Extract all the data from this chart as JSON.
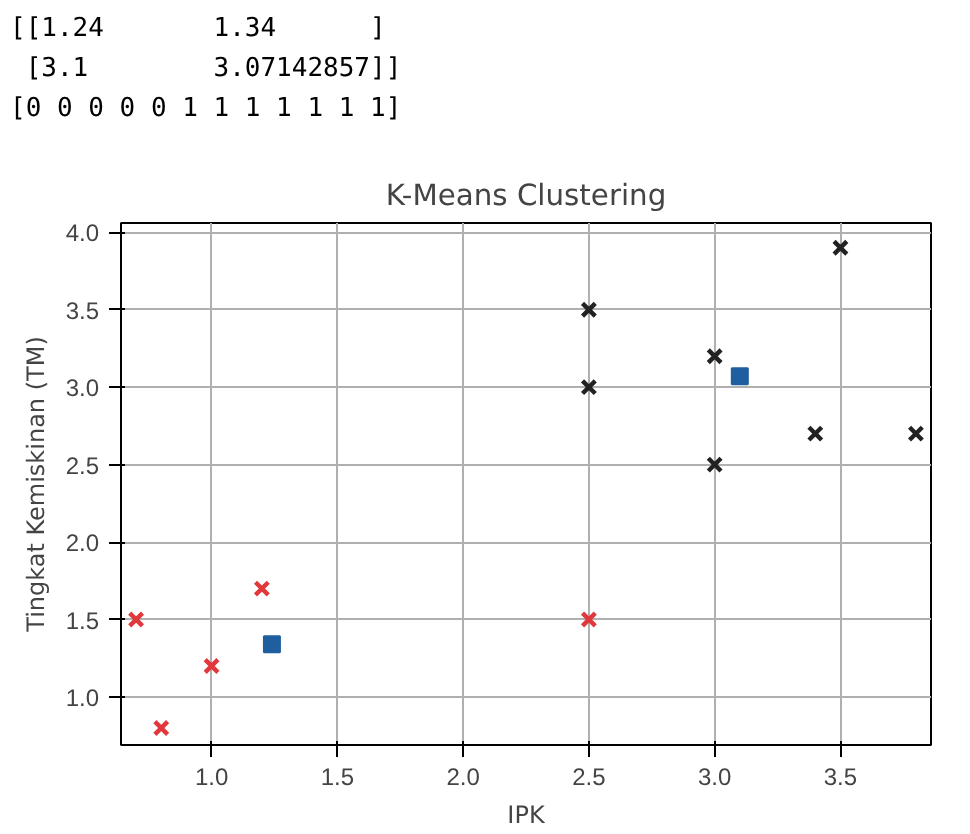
{
  "chart_data": {
    "type": "scatter",
    "title": "K-Means Clustering",
    "xlabel": "IPK",
    "ylabel": "Tingkat Kemiskinan (TM)",
    "annotations": [
      "[[1.24       1.34      ]",
      " [3.1        3.07142857]]",
      "[0 0 0 0 0 1 1 1 1 1 1 1]"
    ],
    "series": [
      {
        "color": "#e0383c",
        "marker": "cross",
        "x": [
          0.7,
          0.8,
          1.0,
          1.2,
          2.5
        ],
        "values": [
          1.5,
          0.8,
          1.2,
          1.7,
          1.5
        ]
      },
      {
        "color": "#222222",
        "marker": "cross",
        "x": [
          2.5,
          2.5,
          3.0,
          3.0,
          3.5,
          3.4,
          3.8
        ],
        "values": [
          3.5,
          3.0,
          3.2,
          2.5,
          3.9,
          2.7,
          2.7
        ]
      },
      {
        "color": "#1f5f9f",
        "marker": "square",
        "x": [
          1.24,
          3.1
        ],
        "values": [
          1.34,
          3.07142857
        ]
      }
    ],
    "xlim": [
      0.64,
      3.86
    ],
    "ylim": [
      0.69,
      4.06
    ],
    "xticks": [
      {
        "value": 1,
        "label": "1.0"
      },
      {
        "value": 1.5,
        "label": "1.5"
      },
      {
        "value": 2,
        "label": "2.0"
      },
      {
        "value": 2.5,
        "label": "2.5"
      },
      {
        "value": 3,
        "label": "3.0"
      },
      {
        "value": 3.5,
        "label": "3.5"
      }
    ],
    "yticks": [
      {
        "value": 1,
        "label": "1.0"
      },
      {
        "value": 1.5,
        "label": "1.5"
      },
      {
        "value": 2,
        "label": "2.0"
      },
      {
        "value": 2.5,
        "label": "2.5"
      },
      {
        "value": 3,
        "label": "3.0"
      },
      {
        "value": 3.5,
        "label": "3.5"
      },
      {
        "value": 4,
        "label": "4.0"
      }
    ],
    "grid": true
  }
}
